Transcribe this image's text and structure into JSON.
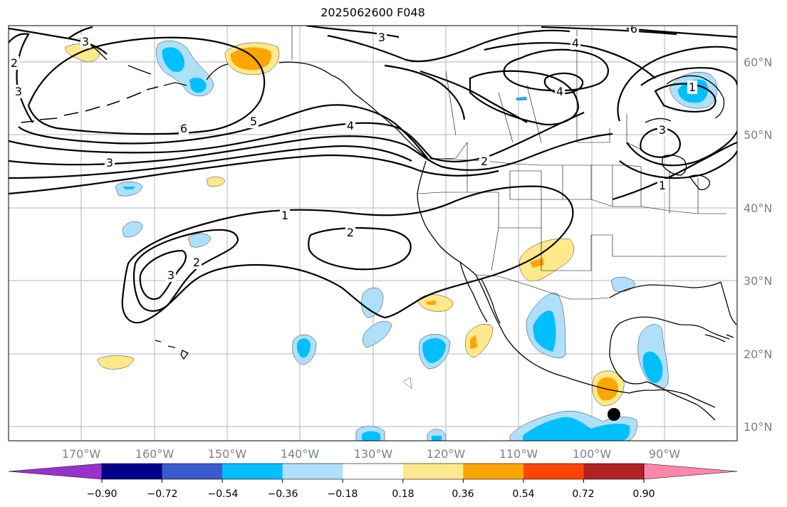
{
  "title": "2025062600 F048",
  "map": {
    "lon_range": [
      -180,
      -80
    ],
    "lat_range": [
      8,
      65
    ],
    "lon_labels": [
      "170°W",
      "160°W",
      "150°W",
      "140°W",
      "130°W",
      "120°W",
      "110°W",
      "100°W",
      "90°W"
    ],
    "lat_labels": [
      "60°N",
      "50°N",
      "40°N",
      "30°N",
      "20°N",
      "10°N"
    ],
    "contour_labels": [
      "3",
      "2",
      "3",
      "6",
      "5",
      "4",
      "3",
      "3",
      "4",
      "4",
      "1",
      "3",
      "1",
      "2",
      "1",
      "2",
      "2",
      "3",
      "6"
    ],
    "marker": {
      "type": "filled-circle",
      "color": "#000000"
    }
  },
  "colorbar": {
    "colors": [
      "#9932cc",
      "#00008b",
      "#3a5bcc",
      "#00bfff",
      "#aee0fb",
      "#ffffff",
      "#ffe98b",
      "#ffa500",
      "#ff4500",
      "#b22222",
      "#ff88aa"
    ],
    "tick_labels": [
      "−0.90",
      "−0.72",
      "−0.54",
      "−0.36",
      "−0.18",
      "0.18",
      "0.36",
      "0.54",
      "0.72",
      "0.90"
    ]
  }
}
